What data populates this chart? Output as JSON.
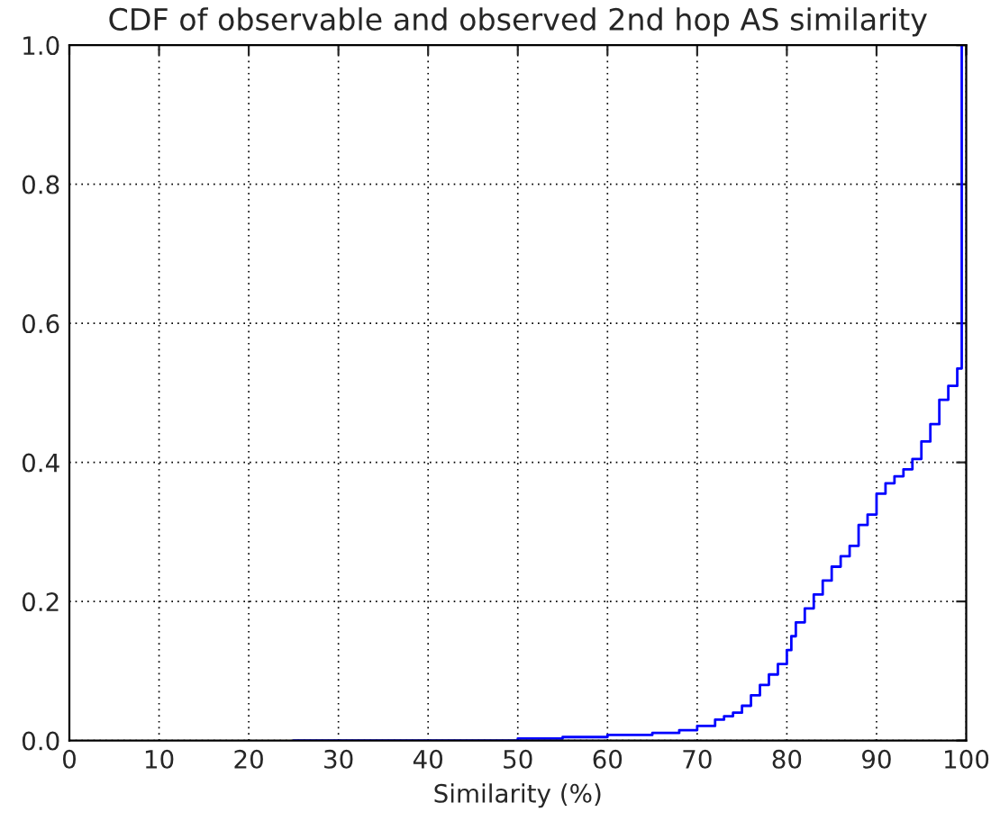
{
  "chart_data": {
    "type": "step",
    "title": "CDF of observable and observed 2nd hop AS similarity",
    "xlabel": "Similarity (%)",
    "x": [
      25,
      50,
      55,
      60,
      65,
      68,
      70,
      72,
      73,
      74,
      75,
      76,
      77,
      78,
      79,
      80,
      80.5,
      81,
      82,
      83,
      84,
      85,
      86,
      87,
      88,
      89,
      90,
      91,
      92,
      93,
      94,
      95,
      96,
      97,
      98,
      99,
      99.5
    ],
    "series": [
      {
        "color": "#0000ff",
        "values": [
          0,
          0.003,
          0.005,
          0.008,
          0.011,
          0.015,
          0.021,
          0.03,
          0.035,
          0.04,
          0.05,
          0.065,
          0.08,
          0.095,
          0.11,
          0.13,
          0.15,
          0.17,
          0.19,
          0.21,
          0.23,
          0.25,
          0.265,
          0.28,
          0.31,
          0.325,
          0.355,
          0.37,
          0.38,
          0.39,
          0.405,
          0.43,
          0.455,
          0.49,
          0.51,
          0.535,
          1.0
        ]
      }
    ],
    "xlim": [
      0,
      100
    ],
    "xticks": [
      0,
      10,
      20,
      30,
      40,
      50,
      60,
      70,
      80,
      90,
      100
    ],
    "ylim": [
      0,
      1
    ],
    "yticks": [
      {
        "value": 0,
        "label": "0.0"
      },
      {
        "value": 0.2,
        "label": "0.2"
      },
      {
        "value": 0.4,
        "label": "0.4"
      },
      {
        "value": 0.6,
        "label": "0.6"
      },
      {
        "value": 0.8,
        "label": "0.8"
      },
      {
        "value": 1,
        "label": "1.0"
      }
    ],
    "grid": true,
    "line_style": "solid",
    "marker": "none"
  }
}
